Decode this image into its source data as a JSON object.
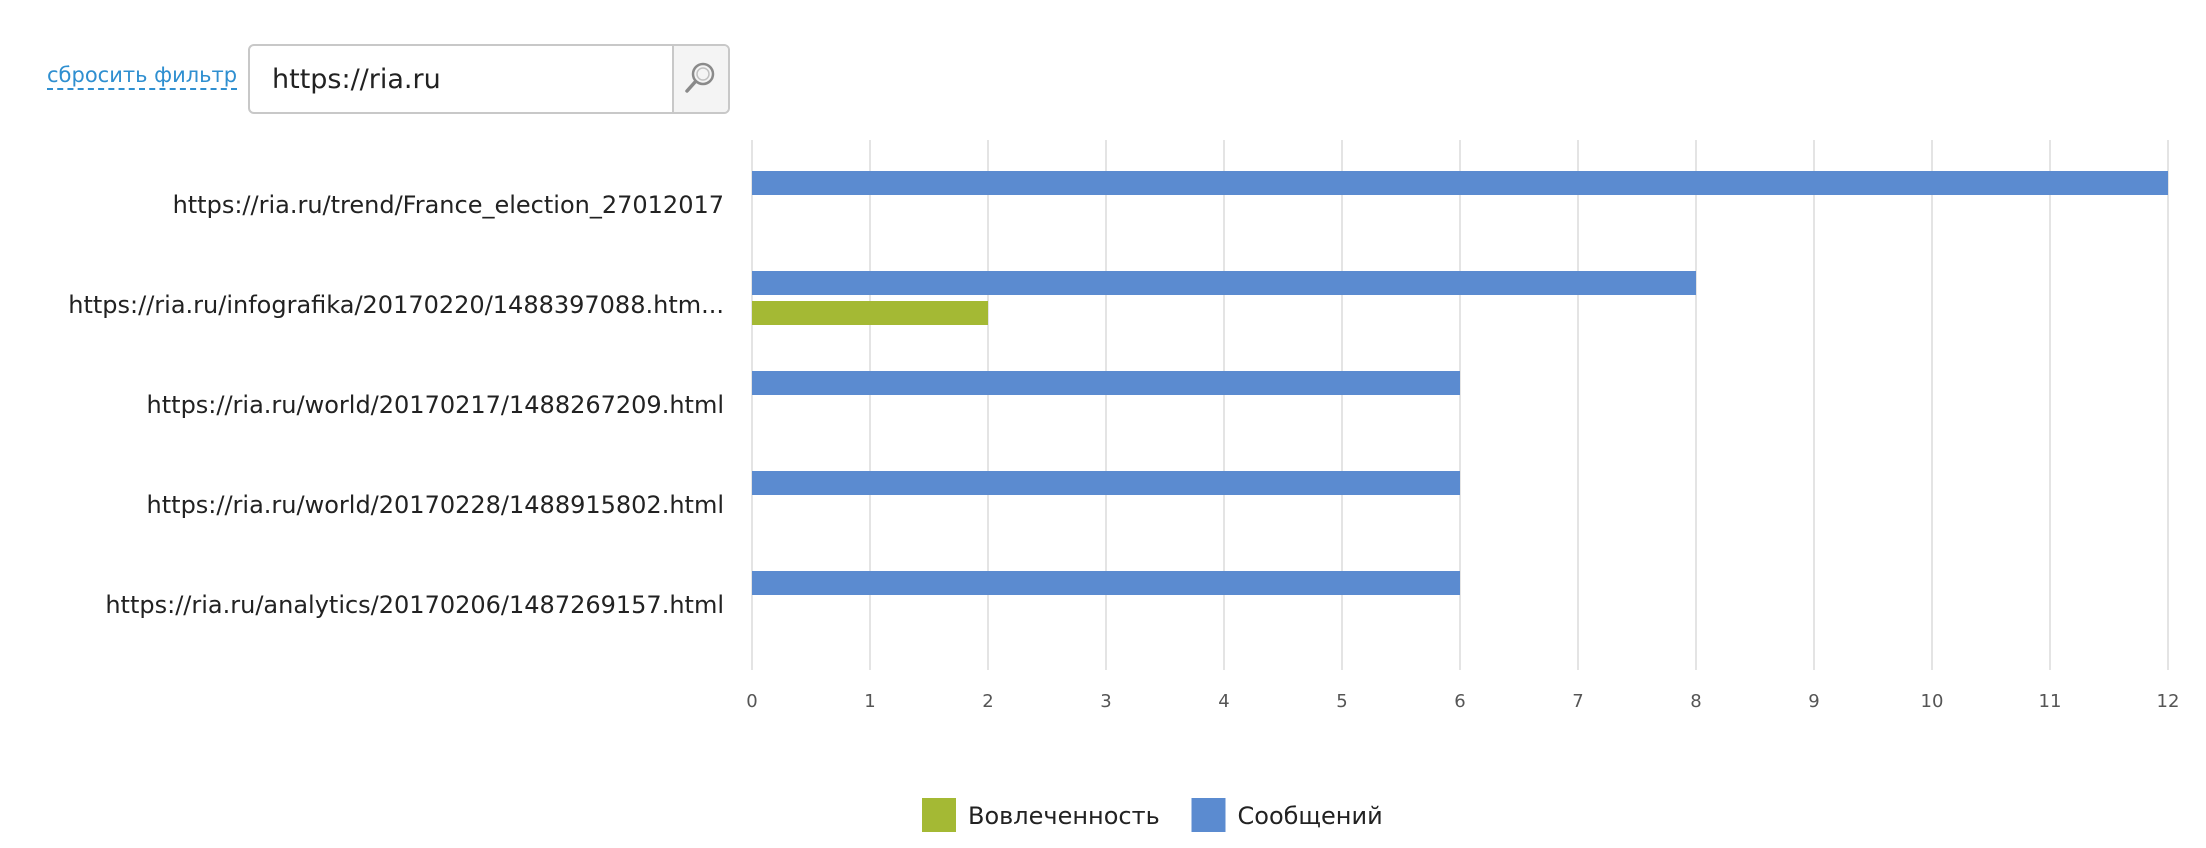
{
  "filter": {
    "reset_label": "сбросить фильтр",
    "search_value": "https://ria.ru",
    "search_icon": "magnifier-icon"
  },
  "colors": {
    "series_messages": "#5b8bd0",
    "series_engagement": "#a4b934",
    "grid": "#dcdcdc",
    "axis_text": "#555555",
    "category_text": "#222222"
  },
  "chart_data": {
    "type": "bar",
    "orientation": "horizontal",
    "categories": [
      "https://ria.ru/trend/France_election_27012017",
      "https://ria.ru/infografika/20170220/1488397088.htm...",
      "https://ria.ru/world/20170217/1488267209.html",
      "https://ria.ru/world/20170228/1488915802.html",
      "https://ria.ru/analytics/20170206/1487269157.html"
    ],
    "series": [
      {
        "name": "Сообщений",
        "color": "#5b8bd0",
        "values": [
          12,
          8,
          6,
          6,
          6
        ]
      },
      {
        "name": "Вовлеченность",
        "color": "#a4b934",
        "values": [
          0,
          2,
          0,
          0,
          0
        ]
      }
    ],
    "xlim": [
      0,
      12
    ],
    "xticks": [
      0,
      1,
      2,
      3,
      4,
      5,
      6,
      7,
      8,
      9,
      10,
      11,
      12
    ],
    "grid": true,
    "legend_position": "bottom-center",
    "legend_order": [
      "Вовлеченность",
      "Сообщений"
    ]
  }
}
